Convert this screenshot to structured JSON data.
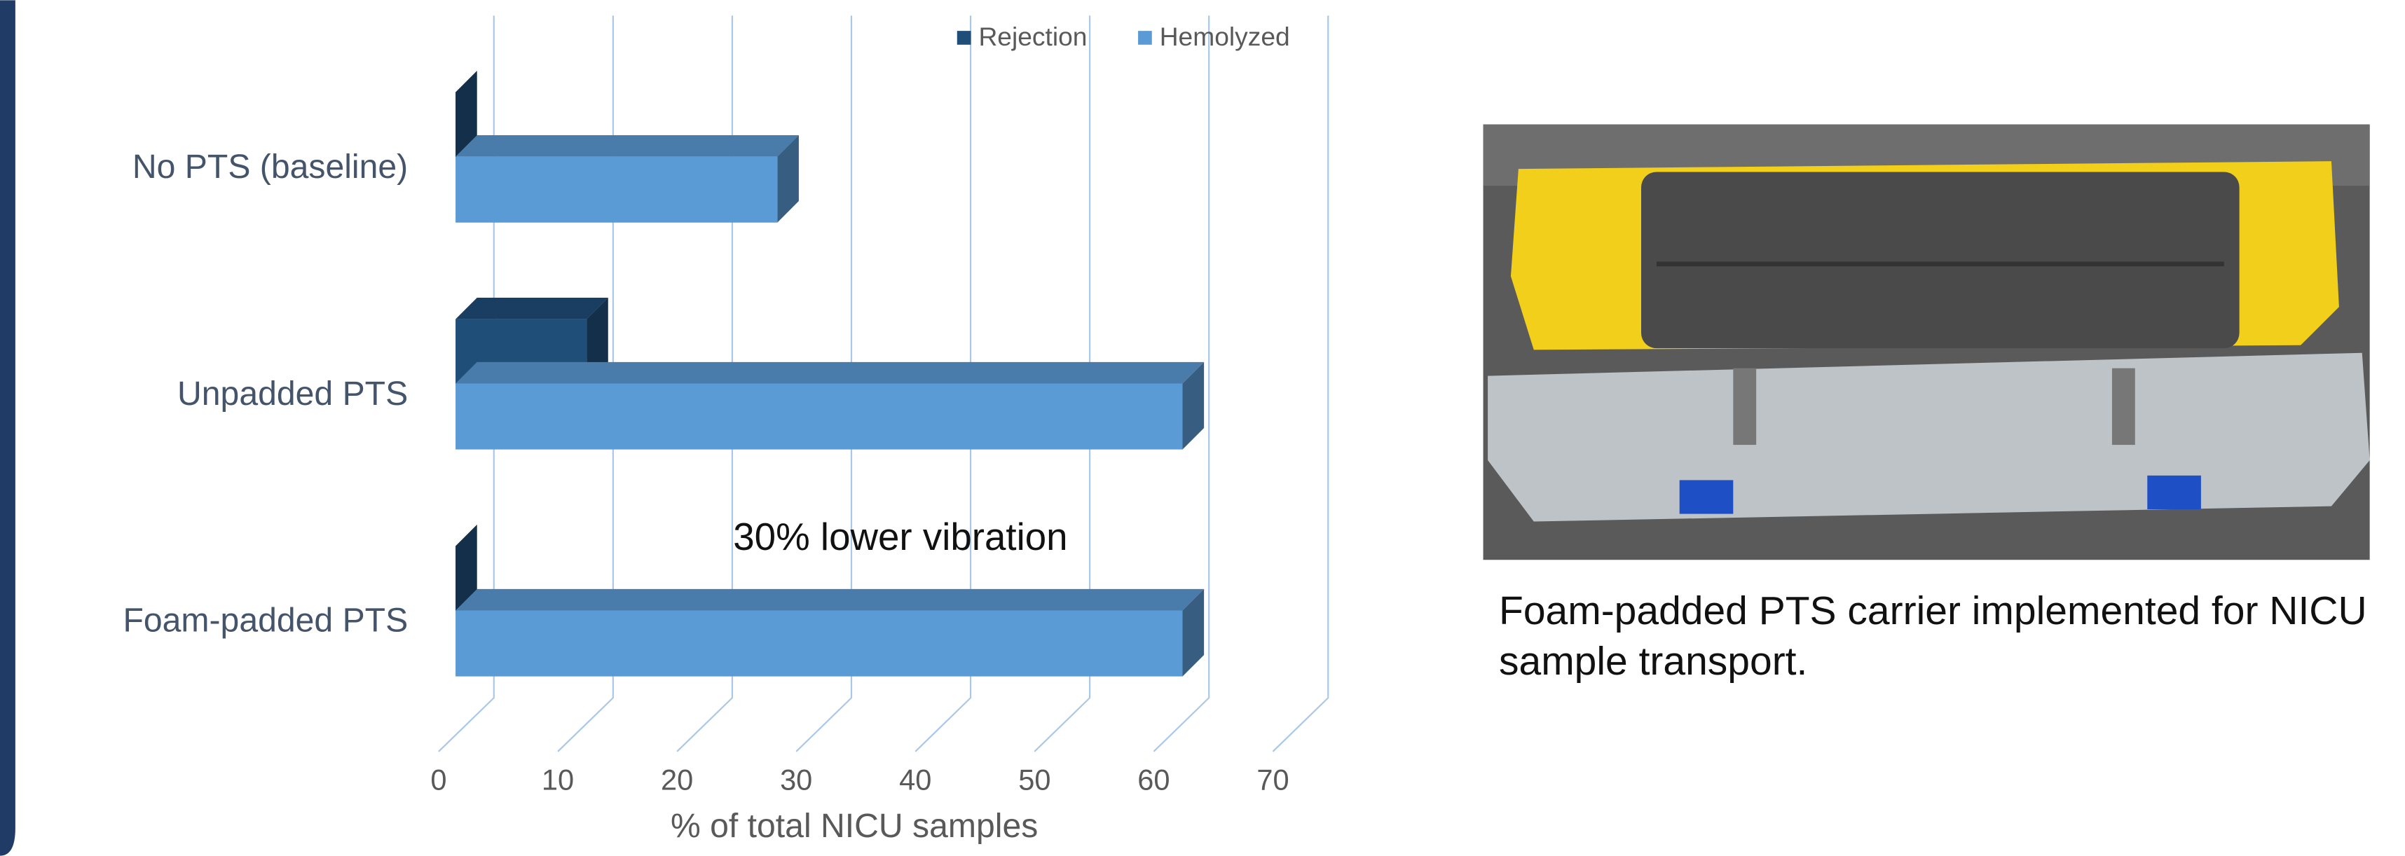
{
  "chart_data": {
    "type": "bar3d",
    "orientation": "horizontal",
    "categories": [
      "No PTS (baseline)",
      "Unpadded PTS",
      "Foam-padded PTS"
    ],
    "series": [
      {
        "name": "Rejection",
        "color": "#1f4e79",
        "values": [
          0,
          11,
          0
        ]
      },
      {
        "name": "Hemolyzed",
        "color": "#5b9bd5",
        "values": [
          27,
          61,
          61
        ]
      }
    ],
    "xlabel": "% of total NICU samples",
    "xlim": [
      0,
      70
    ],
    "xticks": [
      0,
      10,
      20,
      30,
      40,
      50,
      60,
      70
    ],
    "grid": true,
    "legend": "top",
    "annotation": "30% lower vibration"
  },
  "photo_caption": "Foam-padded PTS carrier implemented for NICU sample transport."
}
